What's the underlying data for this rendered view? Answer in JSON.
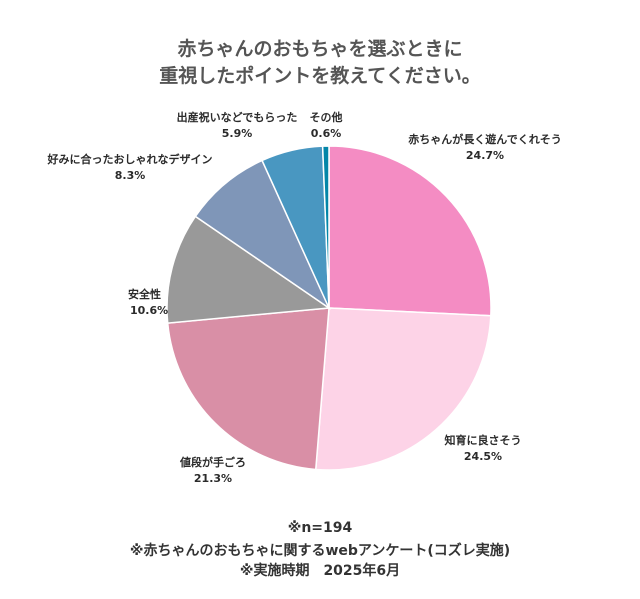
{
  "chart_data": {
    "type": "pie",
    "title_lines": [
      "赤ちゃんのおもちゃを選ぶときに",
      "重視したポイントを教えてください。"
    ],
    "start": "12 o'clock",
    "direction": "clockwise",
    "slices": [
      {
        "label": "赤ちゃんが長く遊んでくれそう",
        "value": 24.7,
        "value_text": "24.7%",
        "color": "#f48cc3"
      },
      {
        "label": "知育に良さそう",
        "value": 24.5,
        "value_text": "24.5%",
        "color": "#fdd3e7"
      },
      {
        "label": "値段が手ごろ",
        "value": 21.3,
        "value_text": "21.3%",
        "color": "#d98fa6"
      },
      {
        "label": "安全性",
        "value": 10.6,
        "value_text": "10.6%",
        "color": "#999999"
      },
      {
        "label": "好みに合ったおしゃれなデザイン",
        "value": 8.3,
        "value_text": "8.3%",
        "color": "#7f96b8"
      },
      {
        "label": "出産祝いなどでもらった",
        "value": 5.9,
        "value_text": "5.9%",
        "color": "#4997c1"
      },
      {
        "label": "その他",
        "value": 0.6,
        "value_text": "0.6%",
        "color": "#0486a8"
      }
    ]
  },
  "footer": {
    "n": "※n=194",
    "source": "※赤ちゃんのおもちゃに関するwebアンケート(コズレ実施)",
    "period": "※実施時期　2025年6月"
  }
}
